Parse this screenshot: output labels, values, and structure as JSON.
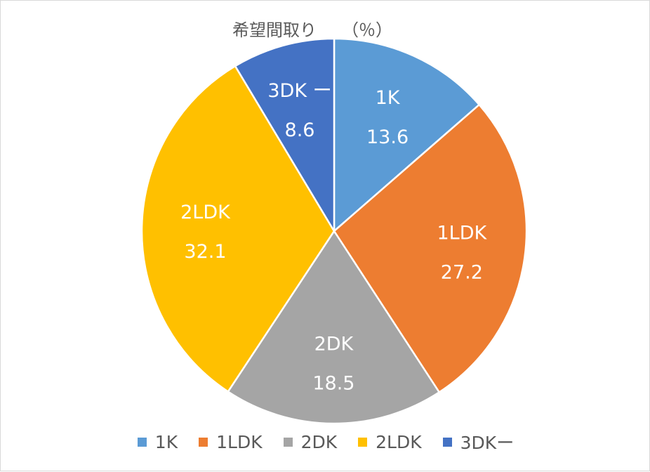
{
  "chart_data": {
    "type": "pie",
    "title": "希望間取り　　（％）",
    "categories": [
      "1K",
      "1LDK",
      "2DK",
      "2LDK",
      "3DK ー"
    ],
    "values": [
      13.6,
      27.2,
      18.5,
      32.1,
      8.6
    ],
    "value_labels": [
      "13.6",
      "27.2",
      "18.5",
      "32.1",
      "8.6"
    ],
    "legend_labels": [
      "1K",
      "1LDK",
      "2DK",
      "2LDK",
      "3DKー"
    ],
    "colors": [
      "#5B9BD5",
      "#ED7D31",
      "#A5A5A5",
      "#FFC000",
      "#4472C4"
    ],
    "start_angle_deg": 0,
    "direction": "clockwise",
    "legend_position": "bottom"
  }
}
